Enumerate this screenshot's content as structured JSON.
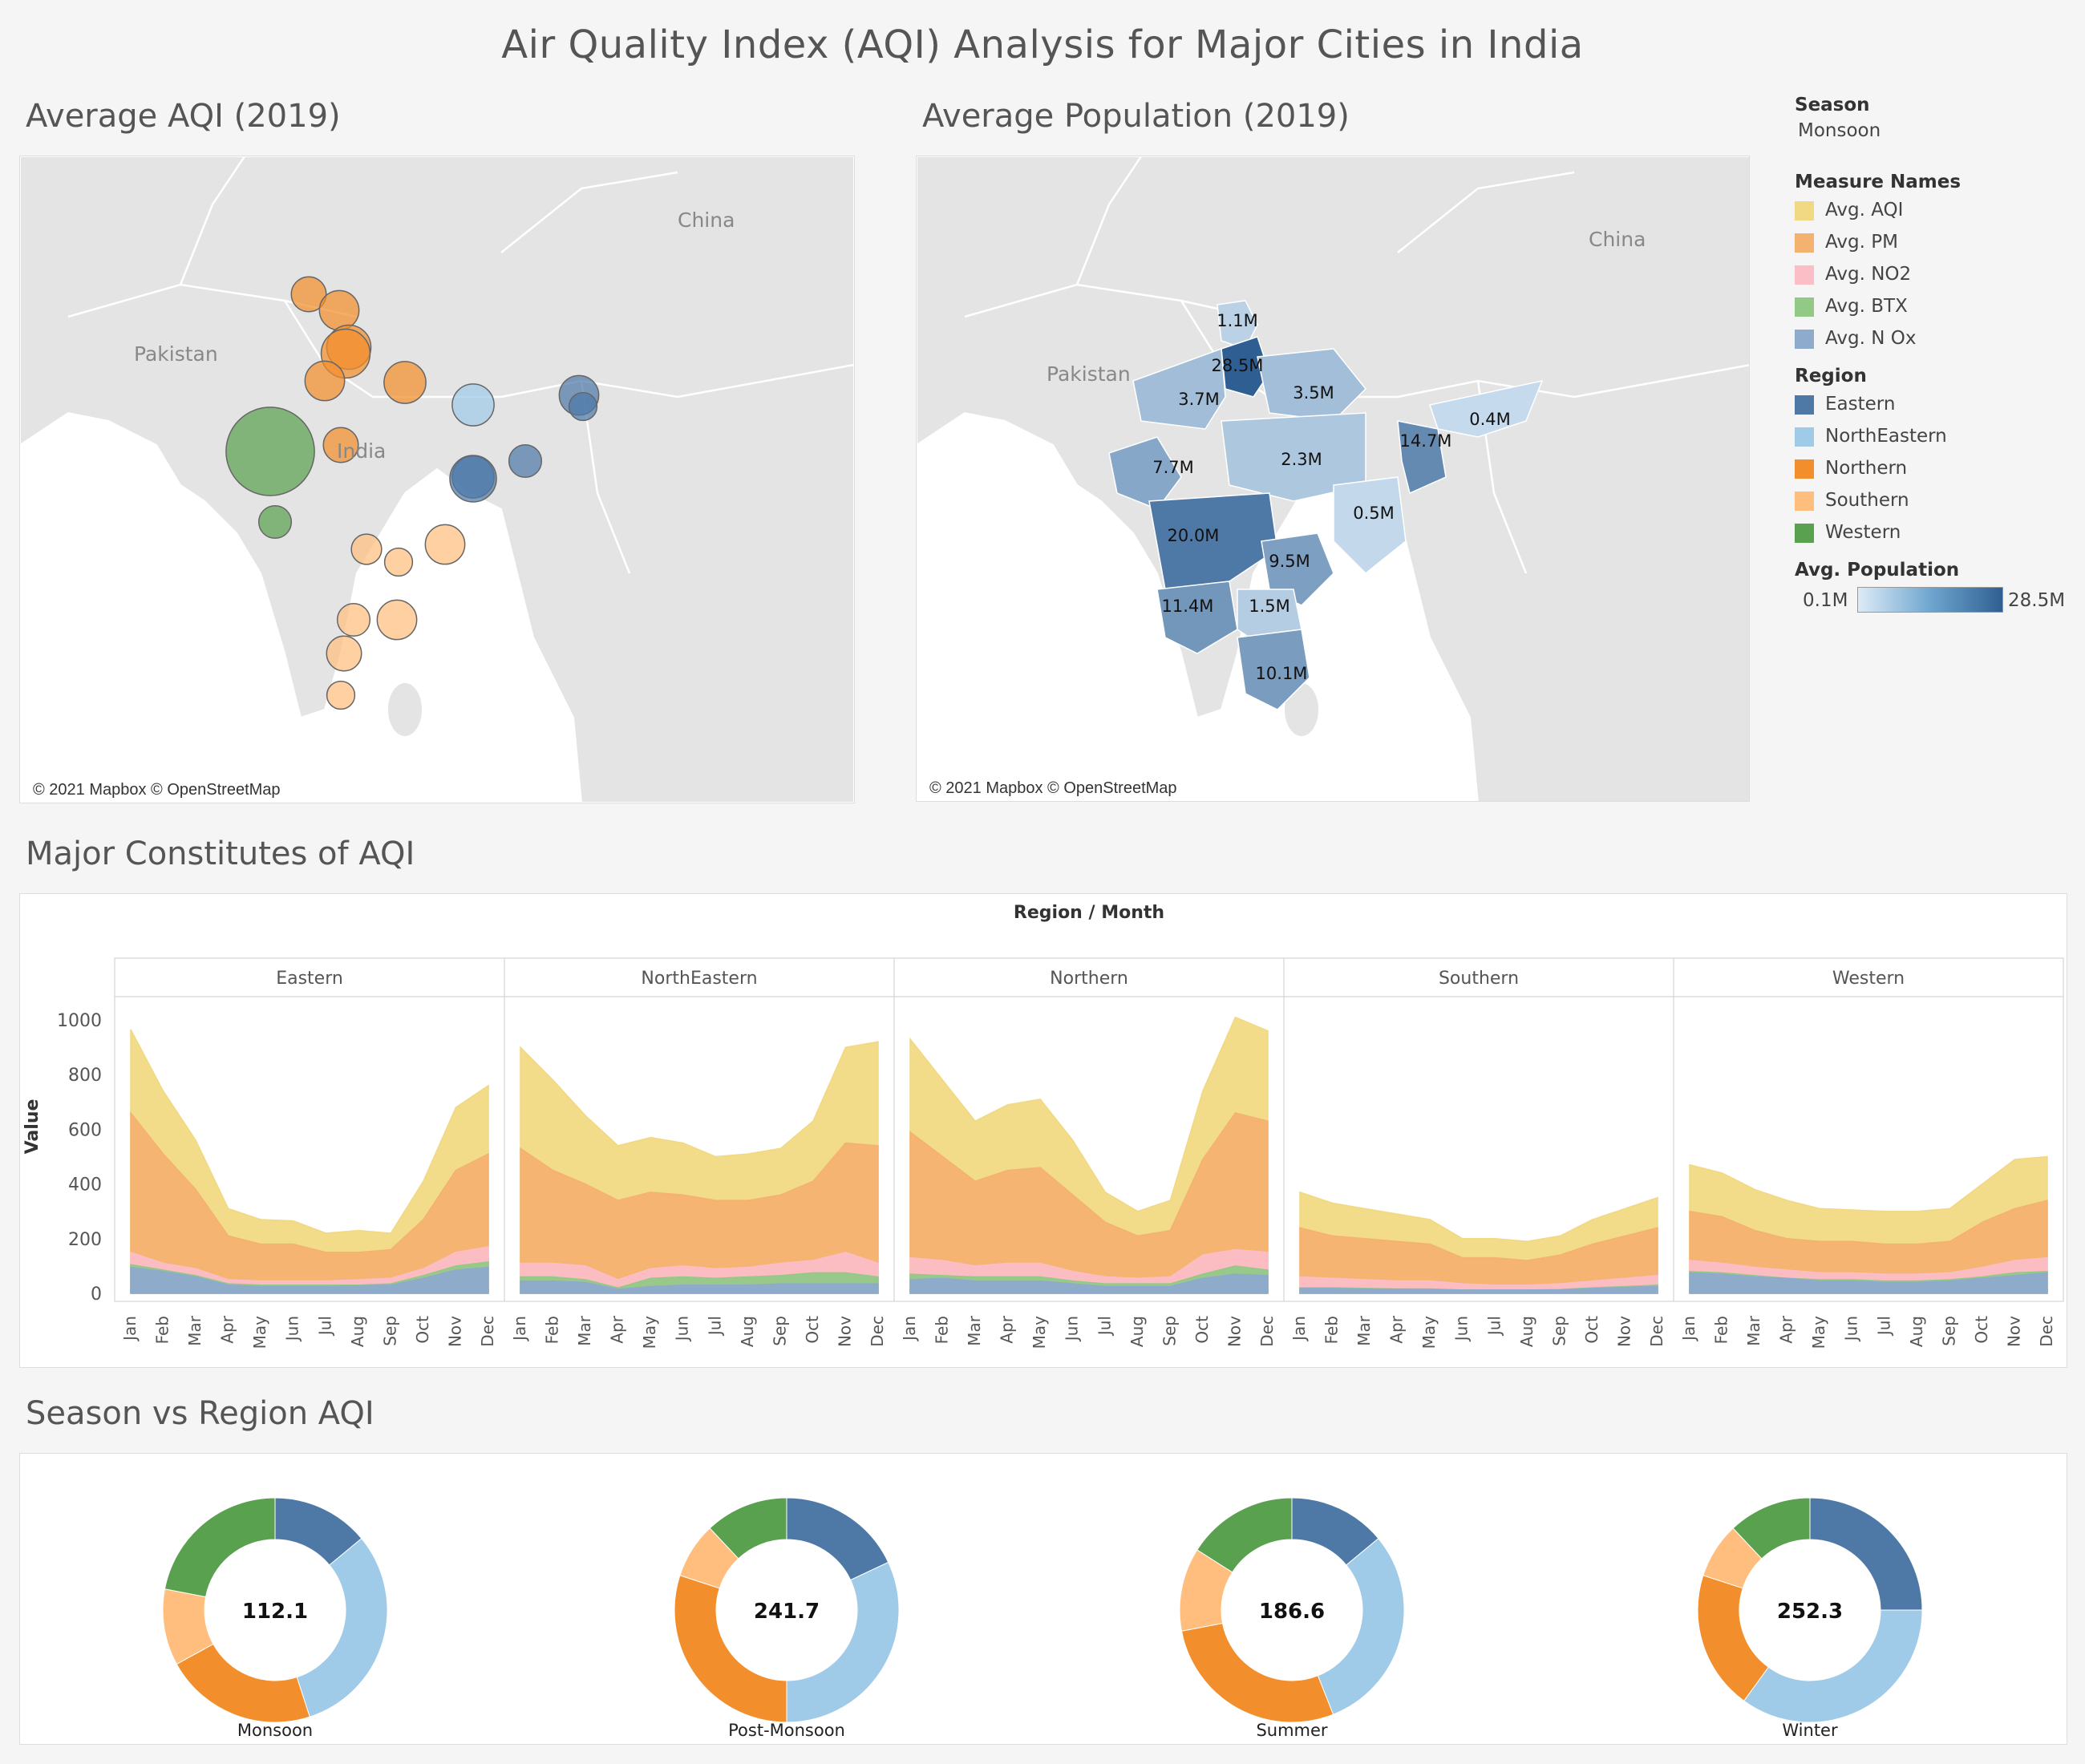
{
  "title": "Air Quality Index  (AQI) Analysis for Major Cities in India",
  "colors": {
    "Eastern": "#4e79a7",
    "NorthEastern": "#a0cbe8",
    "Northern": "#f28e2b",
    "Southern": "#ffbe7d",
    "Western": "#59a14f",
    "Avg. AQI": "#f1d983",
    "Avg. PM": "#f4b270",
    "Avg. NO2": "#fbbec6",
    "Avg. BTX": "#93c987",
    "Avg. N Ox": "#8eaacd"
  },
  "map_aqi": {
    "title": "Average AQI (2019)",
    "labels": {
      "china": "China",
      "pakistan": "Pakistan",
      "india": "India"
    },
    "copyright": "© 2021 Mapbox © OpenStreetMap",
    "bubbles": [
      {
        "region": "Northern",
        "value": 15
      },
      {
        "region": "Northern",
        "value": 17
      },
      {
        "region": "Northern",
        "value": 19
      },
      {
        "region": "Northern",
        "value": 21
      },
      {
        "region": "Northern",
        "value": 17
      },
      {
        "region": "Northern",
        "value": 18
      },
      {
        "region": "Northern",
        "value": 15
      },
      {
        "region": "NorthEastern",
        "value": 18
      },
      {
        "region": "Eastern",
        "value": 17
      },
      {
        "region": "Eastern",
        "value": 12
      },
      {
        "region": "Eastern",
        "value": 14
      },
      {
        "region": "Eastern",
        "value": 18
      },
      {
        "region": "Eastern",
        "value": 20
      },
      {
        "region": "Western",
        "value": 38
      },
      {
        "region": "Western",
        "value": 14
      },
      {
        "region": "Southern",
        "value": 13
      },
      {
        "region": "Southern",
        "value": 12
      },
      {
        "region": "Southern",
        "value": 17
      },
      {
        "region": "Southern",
        "value": 14
      },
      {
        "region": "Southern",
        "value": 17
      },
      {
        "region": "Southern",
        "value": 15
      },
      {
        "region": "Southern",
        "value": 12
      }
    ]
  },
  "map_pop": {
    "title": "Average Population (2019)",
    "labels": {
      "china": "China",
      "pakistan": "Pakistan"
    },
    "copyright": "© 2021 Mapbox © OpenStreetMap",
    "states": [
      {
        "label": "1.1M",
        "value": 1.1
      },
      {
        "label": "28.5M",
        "value": 28.5
      },
      {
        "label": "3.7M",
        "value": 3.7
      },
      {
        "label": "3.5M",
        "value": 3.5
      },
      {
        "label": "0.4M",
        "value": 0.4
      },
      {
        "label": "14.7M",
        "value": 14.7
      },
      {
        "label": "7.7M",
        "value": 7.7
      },
      {
        "label": "2.3M",
        "value": 2.3
      },
      {
        "label": "0.5M",
        "value": 0.5
      },
      {
        "label": "20.0M",
        "value": 20.0
      },
      {
        "label": "9.5M",
        "value": 9.5
      },
      {
        "label": "11.4M",
        "value": 11.4
      },
      {
        "label": "1.5M",
        "value": 1.5
      },
      {
        "label": "10.1M",
        "value": 10.1
      }
    ]
  },
  "legend": {
    "season_head": "Season",
    "season_value": "Monsoon",
    "measure_head": "Measure Names",
    "measures": [
      "Avg. AQI",
      "Avg. PM",
      "Avg. NO2",
      "Avg. BTX",
      "Avg. N Ox"
    ],
    "region_head": "Region",
    "regions": [
      "Eastern",
      "NorthEastern",
      "Northern",
      "Southern",
      "Western"
    ],
    "pop_head": "Avg. Population",
    "pop_min": "0.1M",
    "pop_max": "28.5M"
  },
  "area_section_title": "Major Constitutes of AQI",
  "donut_section_title": "Season vs Region AQI",
  "chart_data": [
    {
      "type": "area",
      "title": "",
      "column_header": "Region / Month",
      "ylabel": "Value",
      "ylim": [
        0,
        1000
      ],
      "yticks": [
        0,
        200,
        400,
        600,
        800,
        1000
      ],
      "months": [
        "Jan",
        "Feb",
        "Mar",
        "Apr",
        "May",
        "Jun",
        "Jul",
        "Aug",
        "Sep",
        "Oct",
        "Nov",
        "Dec"
      ],
      "panels": [
        {
          "region": "Eastern",
          "series": [
            {
              "name": "Avg. AQI",
              "values": [
                965,
                740,
                560,
                310,
                270,
                265,
                220,
                230,
                220,
                410,
                680,
                760
              ]
            },
            {
              "name": "Avg. PM",
              "values": [
                660,
                510,
                380,
                210,
                180,
                180,
                150,
                150,
                160,
                270,
                450,
                510
              ]
            },
            {
              "name": "Avg. NO2",
              "values": [
                150,
                110,
                90,
                50,
                45,
                45,
                45,
                50,
                55,
                90,
                150,
                170
              ]
            },
            {
              "name": "Avg. BTX",
              "values": [
                105,
                85,
                65,
                35,
                30,
                30,
                30,
                30,
                35,
                65,
                100,
                115
              ]
            },
            {
              "name": "Avg. N Ox",
              "values": [
                95,
                80,
                60,
                30,
                25,
                25,
                25,
                28,
                30,
                55,
                85,
                95
              ]
            }
          ]
        },
        {
          "region": "NorthEastern",
          "series": [
            {
              "name": "Avg. AQI",
              "values": [
                900,
                780,
                650,
                540,
                570,
                550,
                500,
                510,
                530,
                630,
                900,
                920
              ]
            },
            {
              "name": "Avg. PM",
              "values": [
                530,
                450,
                400,
                340,
                370,
                360,
                340,
                340,
                360,
                410,
                550,
                540
              ]
            },
            {
              "name": "Avg. NO2",
              "values": [
                110,
                110,
                100,
                50,
                90,
                100,
                90,
                95,
                110,
                120,
                150,
                110
              ]
            },
            {
              "name": "Avg. BTX",
              "values": [
                60,
                60,
                50,
                20,
                55,
                60,
                55,
                60,
                65,
                75,
                75,
                60
              ]
            },
            {
              "name": "Avg. N Ox",
              "values": [
                45,
                45,
                40,
                15,
                25,
                30,
                30,
                30,
                35,
                35,
                35,
                35
              ]
            }
          ]
        },
        {
          "region": "Northern",
          "series": [
            {
              "name": "Avg. AQI",
              "values": [
                930,
                780,
                630,
                690,
                710,
                560,
                370,
                300,
                340,
                740,
                1010,
                960
              ]
            },
            {
              "name": "Avg. PM",
              "values": [
                590,
                500,
                410,
                450,
                460,
                360,
                260,
                210,
                230,
                490,
                660,
                630
              ]
            },
            {
              "name": "Avg. NO2",
              "values": [
                130,
                120,
                100,
                110,
                110,
                80,
                60,
                55,
                60,
                140,
                160,
                150
              ]
            },
            {
              "name": "Avg. BTX",
              "values": [
                70,
                65,
                60,
                60,
                60,
                45,
                35,
                35,
                35,
                70,
                100,
                85
              ]
            },
            {
              "name": "Avg. N Ox",
              "values": [
                50,
                55,
                45,
                45,
                45,
                35,
                25,
                25,
                25,
                55,
                70,
                65
              ]
            }
          ]
        },
        {
          "region": "Southern",
          "series": [
            {
              "name": "Avg. AQI",
              "values": [
                370,
                330,
                310,
                290,
                270,
                200,
                200,
                190,
                210,
                270,
                310,
                350
              ]
            },
            {
              "name": "Avg. PM",
              "values": [
                240,
                210,
                200,
                190,
                180,
                130,
                130,
                120,
                140,
                180,
                210,
                240
              ]
            },
            {
              "name": "Avg. NO2",
              "values": [
                60,
                55,
                50,
                45,
                45,
                35,
                30,
                30,
                35,
                45,
                55,
                65
              ]
            },
            {
              "name": "Avg. BTX",
              "values": [
                20,
                20,
                18,
                16,
                16,
                12,
                12,
                12,
                14,
                20,
                25,
                30
              ]
            },
            {
              "name": "Avg. N Ox",
              "values": [
                18,
                18,
                16,
                15,
                14,
                12,
                12,
                12,
                13,
                18,
                22,
                25
              ]
            }
          ]
        },
        {
          "region": "Western",
          "series": [
            {
              "name": "Avg. AQI",
              "values": [
                470,
                440,
                380,
                340,
                310,
                305,
                300,
                300,
                310,
                400,
                490,
                500
              ]
            },
            {
              "name": "Avg. PM",
              "values": [
                300,
                280,
                230,
                200,
                190,
                190,
                180,
                180,
                190,
                260,
                310,
                340
              ]
            },
            {
              "name": "Avg. NO2",
              "values": [
                120,
                110,
                95,
                85,
                75,
                75,
                70,
                70,
                75,
                95,
                120,
                130
              ]
            },
            {
              "name": "Avg. BTX",
              "values": [
                80,
                75,
                65,
                55,
                50,
                50,
                45,
                45,
                50,
                60,
                75,
                80
              ]
            },
            {
              "name": "Avg. N Ox",
              "values": [
                75,
                70,
                60,
                55,
                45,
                45,
                40,
                40,
                45,
                55,
                65,
                75
              ]
            }
          ]
        }
      ]
    },
    {
      "type": "pie",
      "title": "",
      "region_order": [
        "Eastern",
        "NorthEastern",
        "Northern",
        "Southern",
        "Western"
      ],
      "donuts": [
        {
          "season": "Monsoon",
          "total": "112.1",
          "values": [
            14,
            31,
            22,
            11,
            22
          ]
        },
        {
          "season": "Post-Monsoon",
          "total": "241.7",
          "values": [
            18,
            32,
            30,
            8,
            12
          ]
        },
        {
          "season": "Summer",
          "total": "186.6",
          "values": [
            14,
            30,
            28,
            12,
            16
          ]
        },
        {
          "season": "Winter",
          "total": "252.3",
          "values": [
            25,
            35,
            20,
            8,
            12
          ]
        }
      ]
    }
  ]
}
